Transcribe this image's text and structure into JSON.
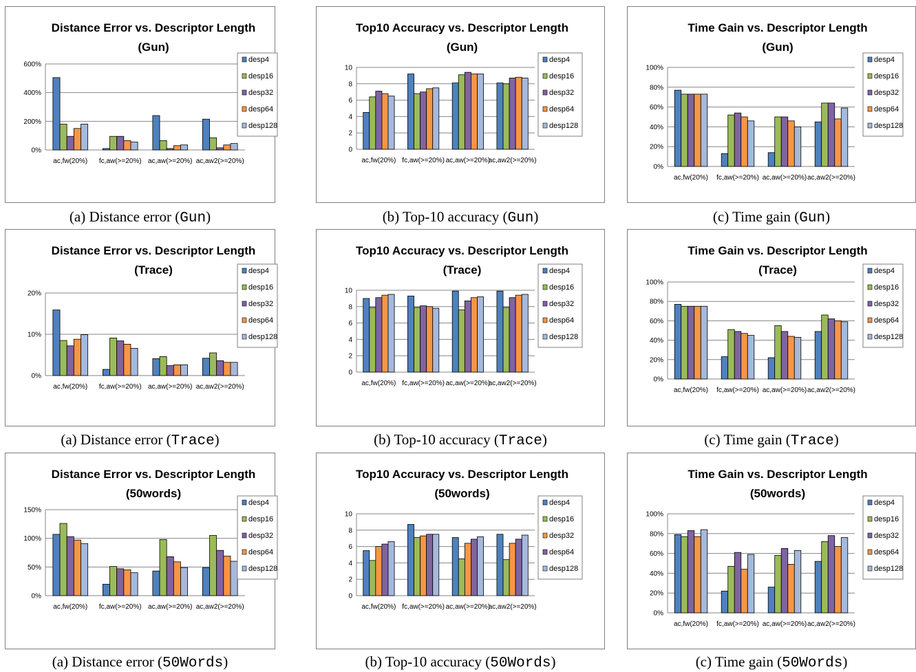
{
  "colors": {
    "desp4": "#4f81bd",
    "desp16": "#9bbb59",
    "desp32": "#8064a2",
    "desp64": "#f79646",
    "desp128": "#a6b9dc"
  },
  "chart_data": [
    {
      "type": "bar",
      "title": "Distance Error vs. Descriptor Length",
      "subtitle": "(Gun)",
      "caption_prefix": "(a) Distance error (",
      "caption_dataset": "Gun",
      "caption_suffix": ")",
      "categories": [
        "ac,fw(20%)",
        "fc,aw(>=20%)",
        "ac,aw(>=20%)",
        "ac,aw2(>=20%)"
      ],
      "ylim": [
        0,
        600
      ],
      "yticks": [
        0,
        200,
        400,
        600
      ],
      "ytick_labels": [
        "0%",
        "200%",
        "400%",
        "600%"
      ],
      "grid": true,
      "legend_position": "right",
      "series": [
        {
          "name": "desp4",
          "values": [
            505,
            10,
            240,
            215
          ]
        },
        {
          "name": "desp16",
          "values": [
            180,
            95,
            65,
            85
          ]
        },
        {
          "name": "desp32",
          "values": [
            95,
            95,
            10,
            15
          ]
        },
        {
          "name": "desp64",
          "values": [
            150,
            65,
            30,
            35
          ]
        },
        {
          "name": "desp128",
          "values": [
            180,
            55,
            35,
            45
          ]
        }
      ]
    },
    {
      "type": "bar",
      "title": "Top10 Accuracy vs. Descriptor Length",
      "subtitle": "(Gun)",
      "caption_prefix": "(b) Top-10 accuracy (",
      "caption_dataset": "Gun",
      "caption_suffix": ")",
      "categories": [
        "ac,fw(20%)",
        "fc,aw(>=20%)",
        "ac,aw(>=20%)",
        "ac,aw2(>=20%)"
      ],
      "ylim": [
        0,
        10
      ],
      "yticks": [
        0,
        2,
        4,
        6,
        8,
        10
      ],
      "ytick_labels": [
        "0",
        "2",
        "4",
        "6",
        "8",
        "10"
      ],
      "grid": true,
      "legend_position": "right",
      "series": [
        {
          "name": "desp4",
          "values": [
            4.5,
            9.2,
            8.1,
            8.1
          ]
        },
        {
          "name": "desp16",
          "values": [
            6.4,
            6.8,
            9.1,
            8.0
          ]
        },
        {
          "name": "desp32",
          "values": [
            7.1,
            7.0,
            9.4,
            8.7
          ]
        },
        {
          "name": "desp64",
          "values": [
            6.8,
            7.4,
            9.2,
            8.8
          ]
        },
        {
          "name": "desp128",
          "values": [
            6.5,
            7.5,
            9.2,
            8.7
          ]
        }
      ]
    },
    {
      "type": "bar",
      "title": "Time Gain vs. Descriptor Length",
      "subtitle": "(Gun)",
      "caption_prefix": "(c) Time gain (",
      "caption_dataset": "Gun",
      "caption_suffix": ")",
      "categories": [
        "ac,fw(20%)",
        "fc,aw(>=20%)",
        "ac,aw(>=20%)",
        "ac,aw2(>=20%)"
      ],
      "ylim": [
        0,
        100
      ],
      "yticks": [
        0,
        20,
        40,
        60,
        80,
        100
      ],
      "ytick_labels": [
        "0%",
        "20%",
        "40%",
        "60%",
        "80%",
        "100%"
      ],
      "grid": true,
      "legend_position": "right",
      "series": [
        {
          "name": "desp4",
          "values": [
            77,
            13,
            14,
            45
          ]
        },
        {
          "name": "desp16",
          "values": [
            73,
            52,
            50,
            64
          ]
        },
        {
          "name": "desp32",
          "values": [
            73,
            54,
            50,
            64
          ]
        },
        {
          "name": "desp64",
          "values": [
            73,
            50,
            46,
            48
          ]
        },
        {
          "name": "desp128",
          "values": [
            73,
            46,
            40,
            59
          ]
        }
      ]
    },
    {
      "type": "bar",
      "title": "Distance Error vs. Descriptor Length",
      "subtitle": "(Trace)",
      "caption_prefix": "(a) Distance error (",
      "caption_dataset": "Trace",
      "caption_suffix": ")",
      "categories": [
        "ac,fw(20%)",
        "fc,aw(>=20%)",
        "ac,aw(>=20%)",
        "ac,aw2(>=20%)"
      ],
      "ylim": [
        0,
        20
      ],
      "yticks": [
        0,
        10,
        20
      ],
      "ytick_labels": [
        "0%",
        "10%",
        "20%"
      ],
      "grid": true,
      "legend_position": "right",
      "series": [
        {
          "name": "desp4",
          "values": [
            15.9,
            1.5,
            4.1,
            4.2
          ]
        },
        {
          "name": "desp16",
          "values": [
            8.5,
            9.1,
            4.6,
            5.5
          ]
        },
        {
          "name": "desp32",
          "values": [
            7.2,
            8.4,
            2.4,
            3.6
          ]
        },
        {
          "name": "desp64",
          "values": [
            8.8,
            7.6,
            2.6,
            3.2
          ]
        },
        {
          "name": "desp128",
          "values": [
            9.9,
            6.6,
            2.6,
            3.2
          ]
        }
      ]
    },
    {
      "type": "bar",
      "title": "Top10 Accuracy vs. Descriptor Length",
      "subtitle": "(Trace)",
      "caption_prefix": "(b) Top-10 accuracy (",
      "caption_dataset": "Trace",
      "caption_suffix": ")",
      "categories": [
        "ac,fw(20%)",
        "fc,aw(>=20%)",
        "ac,aw(>=20%)",
        "ac,aw2(>=20%)"
      ],
      "ylim": [
        0,
        10
      ],
      "yticks": [
        0,
        2,
        4,
        6,
        8,
        10
      ],
      "ytick_labels": [
        "0",
        "2",
        "4",
        "6",
        "8",
        "10"
      ],
      "grid": true,
      "legend_position": "right",
      "series": [
        {
          "name": "desp4",
          "values": [
            9.0,
            9.3,
            9.9,
            9.9
          ]
        },
        {
          "name": "desp16",
          "values": [
            7.9,
            7.9,
            7.6,
            7.9
          ]
        },
        {
          "name": "desp32",
          "values": [
            9.1,
            8.1,
            8.7,
            9.1
          ]
        },
        {
          "name": "desp64",
          "values": [
            9.4,
            8.0,
            9.1,
            9.4
          ]
        },
        {
          "name": "desp128",
          "values": [
            9.5,
            7.8,
            9.2,
            9.5
          ]
        }
      ]
    },
    {
      "type": "bar",
      "title": "Time Gain vs. Descriptor Length",
      "subtitle": "(Trace)",
      "caption_prefix": "(c) Time gain (",
      "caption_dataset": "Trace",
      "caption_suffix": ")",
      "categories": [
        "ac,fw(20%)",
        "fc,aw(>=20%)",
        "ac,aw(>=20%)",
        "ac,aw2(>=20%)"
      ],
      "ylim": [
        0,
        100
      ],
      "yticks": [
        0,
        20,
        40,
        60,
        80,
        100
      ],
      "ytick_labels": [
        "0%",
        "20%",
        "40%",
        "60%",
        "80%",
        "100%"
      ],
      "grid": true,
      "legend_position": "right",
      "series": [
        {
          "name": "desp4",
          "values": [
            77,
            23,
            22,
            49
          ]
        },
        {
          "name": "desp16",
          "values": [
            75,
            51,
            55,
            66
          ]
        },
        {
          "name": "desp32",
          "values": [
            75,
            49,
            49,
            62
          ]
        },
        {
          "name": "desp64",
          "values": [
            75,
            47,
            44,
            60
          ]
        },
        {
          "name": "desp128",
          "values": [
            75,
            45,
            43,
            59
          ]
        }
      ]
    },
    {
      "type": "bar",
      "title": "Distance Error vs. Descriptor Length",
      "subtitle": "(50words)",
      "caption_prefix": "(a) Distance error (",
      "caption_dataset": "50Words",
      "caption_suffix": ")",
      "categories": [
        "ac,fw(20%)",
        "fc,aw(>=20%)",
        "ac,aw(>=20%)",
        "ac,aw2(>=20%)"
      ],
      "ylim": [
        0,
        150
      ],
      "yticks": [
        0,
        50,
        100,
        150
      ],
      "ytick_labels": [
        "0%",
        "50%",
        "100%",
        "150%"
      ],
      "grid": true,
      "legend_position": "right",
      "series": [
        {
          "name": "desp4",
          "values": [
            107,
            20,
            43,
            49
          ]
        },
        {
          "name": "desp16",
          "values": [
            126,
            51,
            98,
            105
          ]
        },
        {
          "name": "desp32",
          "values": [
            103,
            47,
            68,
            79
          ]
        },
        {
          "name": "desp64",
          "values": [
            97,
            45,
            59,
            69
          ]
        },
        {
          "name": "desp128",
          "values": [
            91,
            40,
            49,
            60
          ]
        }
      ]
    },
    {
      "type": "bar",
      "title": "Top10 Accuracy vs. Descriptor Length",
      "subtitle": "(50words)",
      "caption_prefix": "(b) Top-10 accuracy (",
      "caption_dataset": "50Words",
      "caption_suffix": ")",
      "categories": [
        "ac,fw(20%)",
        "fc,aw(>=20%)",
        "ac,aw(>=20%)",
        "ac,aw2(>=20%)"
      ],
      "ylim": [
        0,
        10
      ],
      "yticks": [
        0,
        2,
        4,
        6,
        8,
        10
      ],
      "ytick_labels": [
        "0",
        "2",
        "4",
        "6",
        "8",
        "10"
      ],
      "grid": true,
      "legend_position": "right",
      "series": [
        {
          "name": "desp4",
          "values": [
            5.5,
            8.7,
            7.1,
            7.5
          ]
        },
        {
          "name": "desp16",
          "values": [
            4.3,
            7.1,
            4.5,
            4.4
          ],
          "color_key": "desp16"
        },
        {
          "name": "desp32",
          "values": [
            6.0,
            7.3,
            6.4,
            6.4
          ],
          "color_key": "desp64"
        },
        {
          "name": "desp64",
          "values": [
            6.3,
            7.5,
            6.9,
            6.9
          ],
          "color_key": "desp32"
        },
        {
          "name": "desp128",
          "values": [
            6.6,
            7.5,
            7.2,
            7.4
          ]
        }
      ]
    },
    {
      "type": "bar",
      "title": "Time Gain vs. Descriptor Length",
      "subtitle": "(50words)",
      "caption_prefix": "(c) Time gain (",
      "caption_dataset": "50Words",
      "caption_suffix": ")",
      "categories": [
        "ac,fw(20%)",
        "fc,aw(>=20%)",
        "ac,aw(>=20%)",
        "ac,aw2(>=20%)"
      ],
      "ylim": [
        0,
        100
      ],
      "yticks": [
        0,
        20,
        40,
        60,
        80,
        100
      ],
      "ytick_labels": [
        "0%",
        "20%",
        "40%",
        "60%",
        "80%",
        "100%"
      ],
      "grid": true,
      "legend_position": "right",
      "series": [
        {
          "name": "desp4",
          "values": [
            79,
            22,
            26,
            52
          ]
        },
        {
          "name": "desp16",
          "values": [
            77,
            47,
            58,
            72
          ]
        },
        {
          "name": "desp32",
          "values": [
            83,
            61,
            65,
            78
          ]
        },
        {
          "name": "desp64",
          "values": [
            77,
            44,
            49,
            67
          ]
        },
        {
          "name": "desp128",
          "values": [
            84,
            59,
            63,
            76
          ]
        }
      ]
    }
  ]
}
